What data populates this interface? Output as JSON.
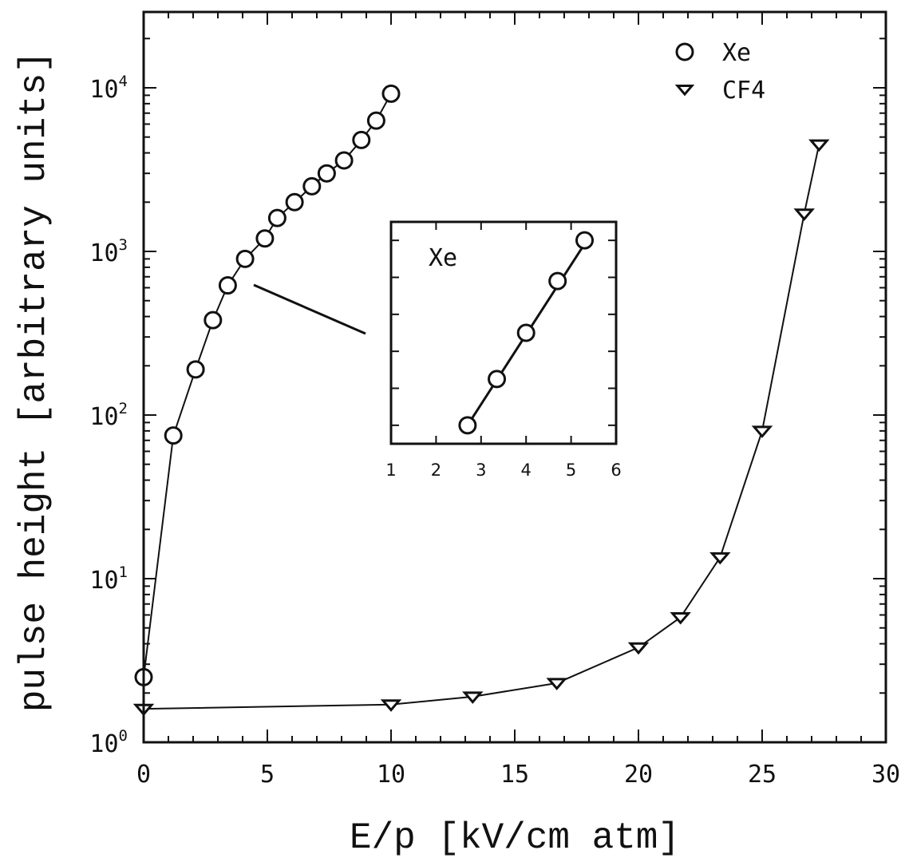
{
  "chart_data": {
    "type": "scatter",
    "xlabel": "E/p [kV/cm atm]",
    "ylabel": "pulse height [arbitrary units]",
    "xlim": [
      0,
      30
    ],
    "ylim": [
      1,
      30000
    ],
    "yscale": "log",
    "x_ticks": [
      "0",
      "5",
      "10",
      "15",
      "20",
      "25",
      "30"
    ],
    "y_ticks": [
      {
        "base": "10",
        "exp": "0",
        "value": 1
      },
      {
        "base": "10",
        "exp": "1",
        "value": 10
      },
      {
        "base": "10",
        "exp": "2",
        "value": 100
      },
      {
        "base": "10",
        "exp": "3",
        "value": 1000
      },
      {
        "base": "10",
        "exp": "4",
        "value": 10000
      }
    ],
    "legend_position": "top-right",
    "series": [
      {
        "name": "Xe",
        "marker": "circle",
        "x": [
          0,
          1.2,
          2.1,
          2.8,
          3.4,
          4.1,
          4.9,
          5.4,
          6.1,
          6.8,
          7.4,
          8.1,
          8.8,
          9.4,
          10.0
        ],
        "y": [
          2.5,
          75,
          190,
          380,
          620,
          900,
          1200,
          1600,
          2000,
          2500,
          3000,
          3600,
          4800,
          6300,
          9200
        ]
      },
      {
        "name": "CF4",
        "marker": "triangle-down",
        "x": [
          0,
          10.0,
          13.3,
          16.7,
          20.0,
          21.7,
          23.3,
          25.0,
          26.7,
          27.3
        ],
        "y": [
          1.6,
          1.7,
          1.9,
          2.3,
          3.8,
          5.8,
          13.5,
          80,
          1700,
          4500
        ]
      }
    ],
    "inset": {
      "title": "Xe",
      "type": "scatter",
      "x_ticks": [
        "1",
        "2",
        "3",
        "4",
        "5",
        "6"
      ],
      "xlim": [
        1,
        6
      ],
      "series": [
        {
          "name": "Xe",
          "x": [
            2.7,
            3.35,
            4.0,
            4.7,
            5.3
          ],
          "y": [
            1,
            2.25,
            3.5,
            4.9,
            6.0
          ]
        }
      ],
      "fit_line": {
        "x": [
          2.7,
          5.35
        ],
        "y": [
          1,
          6.0
        ]
      },
      "ylim": [
        0.5,
        6.5
      ]
    }
  }
}
